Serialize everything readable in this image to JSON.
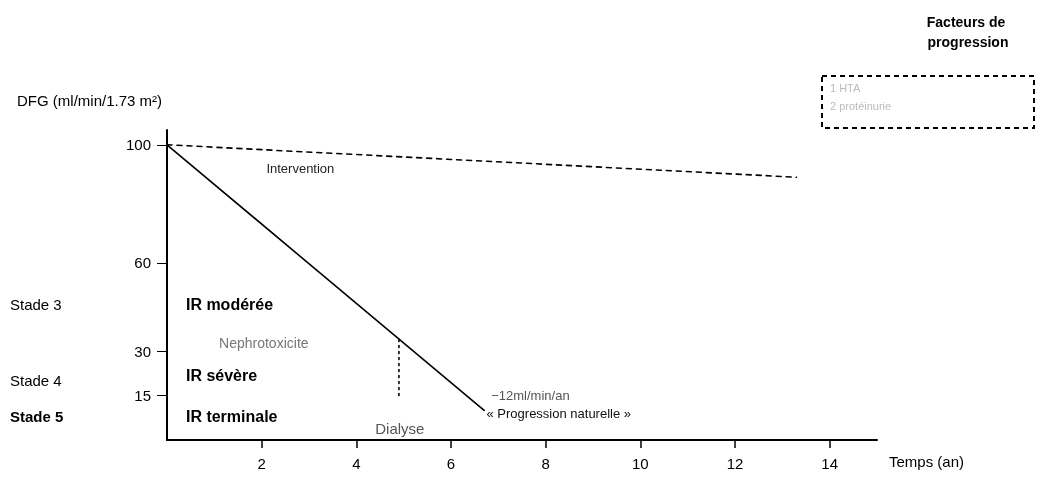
{
  "chart_data": {
    "type": "line",
    "xlabel": "Temps (an)",
    "ylabel": "DFG (ml/min/1.73 m²)",
    "xlim": [
      0,
      15
    ],
    "xticks": [
      2,
      4,
      6,
      8,
      10,
      12,
      14
    ],
    "ylim": [
      0,
      105
    ],
    "yticks": [
      15,
      30,
      60,
      100
    ],
    "grid": false,
    "marker": "none",
    "series": [
      {
        "color": "#000000",
        "line_style": "solid",
        "x": [
          0,
          6.7
        ],
        "values": [
          100,
          10
        ]
      },
      {
        "color": "#000000",
        "line_style": "dashed",
        "x": [
          0,
          13.3
        ],
        "values": [
          100,
          89
        ]
      },
      {
        "color": "#000000",
        "line_style": "dotted",
        "x": [
          4.9,
          4.9
        ],
        "values": [
          34,
          14
        ]
      }
    ],
    "annotations": [
      "Intervention",
      "IR modérée",
      "IR sévère",
      "IR terminale",
      "Nephrotoxicite",
      "Dialyse",
      "−12ml/min/an",
      "« Progression naturelle »",
      "Stade 3",
      "Stade 4",
      "Stade 5",
      "Facteurs de progression",
      "1 HTA",
      "2 protéinurie"
    ]
  }
}
